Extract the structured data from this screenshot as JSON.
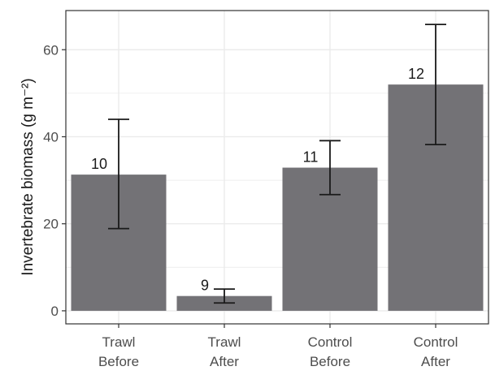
{
  "chart_data": {
    "type": "bar",
    "categories": [
      [
        "Trawl",
        "Before"
      ],
      [
        "Trawl",
        "After"
      ],
      [
        "Control",
        "Before"
      ],
      [
        "Control",
        "After"
      ]
    ],
    "values": [
      31.3,
      3.4,
      32.9,
      52.0
    ],
    "error_low": [
      18.9,
      1.8,
      26.7,
      38.2
    ],
    "error_high": [
      44.0,
      5.0,
      39.1,
      65.8
    ],
    "bar_labels": [
      "10",
      "9",
      "11",
      "12"
    ],
    "ylabel": "Invertebrate biomass (g m⁻²)",
    "xlabel": "",
    "ylim": [
      -3,
      69
    ],
    "yticks": [
      0,
      20,
      40,
      60
    ],
    "grid": true,
    "colors": {
      "bar": "#737276",
      "errorbar": "#1a1a1a",
      "grid": "#ebebeb",
      "panel_border": "#333333"
    }
  }
}
